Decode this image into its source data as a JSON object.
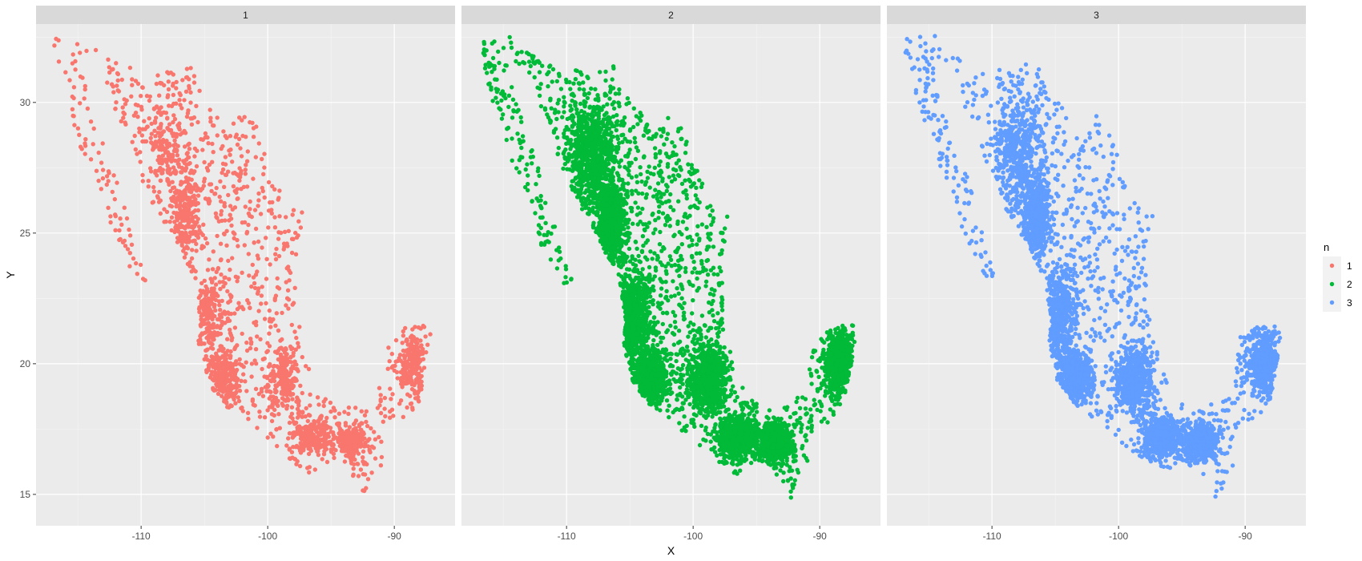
{
  "chart_data": {
    "type": "scatter",
    "facet_labels": [
      "1",
      "2",
      "3"
    ],
    "xlabel": "X",
    "ylabel": "Y",
    "x_ticks": [
      -110,
      -100,
      -90
    ],
    "y_ticks": [
      15,
      20,
      25,
      30
    ],
    "xlim": [
      -118.3,
      -85.2
    ],
    "ylim": [
      13.8,
      33.0
    ],
    "grid": true,
    "legend": {
      "title": "n",
      "position": "right",
      "entries": [
        {
          "label": "1",
          "color": "#F8766D"
        },
        {
          "label": "2",
          "color": "#00BA38"
        },
        {
          "label": "3",
          "color": "#619CFF"
        }
      ]
    },
    "series": [
      {
        "name": "1",
        "color": "#F8766D",
        "facet": "1",
        "approx_point_count": 2500,
        "x_range": [
          -117,
          -87
        ],
        "y_range": [
          14.9,
          32.6
        ]
      },
      {
        "name": "2",
        "color": "#00BA38",
        "facet": "2",
        "approx_point_count": 9000,
        "x_range": [
          -117,
          -87
        ],
        "y_range": [
          15.0,
          32.6
        ]
      },
      {
        "name": "3",
        "color": "#619CFF",
        "facet": "3",
        "approx_point_count": 6000,
        "x_range": [
          -117,
          -87
        ],
        "y_range": [
          14.6,
          32.6
        ]
      }
    ],
    "region_outline": [
      [
        -117.1,
        32.6
      ],
      [
        -116.4,
        32.5
      ],
      [
        -114.6,
        32.6
      ],
      [
        -113.5,
        32.2
      ],
      [
        -111.2,
        31.4
      ],
      [
        -109.3,
        31.3
      ],
      [
        -108.2,
        31.3
      ],
      [
        -106.4,
        31.7
      ],
      [
        -104.8,
        30.0
      ],
      [
        -103.2,
        29.1
      ],
      [
        -102.0,
        29.6
      ],
      [
        -100.9,
        29.3
      ],
      [
        -100.2,
        28.1
      ],
      [
        -99.4,
        27.0
      ],
      [
        -98.2,
        26.0
      ],
      [
        -97.2,
        25.9
      ],
      [
        -97.7,
        24.0
      ],
      [
        -97.7,
        22.5
      ],
      [
        -97.3,
        21.0
      ],
      [
        -96.2,
        19.4
      ],
      [
        -94.6,
        18.2
      ],
      [
        -92.0,
        18.6
      ],
      [
        -91.0,
        19.2
      ],
      [
        -90.4,
        21.1
      ],
      [
        -89.6,
        21.4
      ],
      [
        -87.0,
        21.5
      ],
      [
        -87.5,
        20.0
      ],
      [
        -88.0,
        18.6
      ],
      [
        -89.2,
        17.8
      ],
      [
        -91.0,
        17.3
      ],
      [
        -90.9,
        16.0
      ],
      [
        -92.2,
        14.8
      ],
      [
        -93.6,
        15.9
      ],
      [
        -94.7,
        16.2
      ],
      [
        -96.5,
        15.7
      ],
      [
        -98.4,
        16.4
      ],
      [
        -100.0,
        17.1
      ],
      [
        -101.8,
        17.8
      ],
      [
        -103.4,
        18.4
      ],
      [
        -104.9,
        19.4
      ],
      [
        -105.5,
        20.8
      ],
      [
        -105.3,
        21.6
      ],
      [
        -105.8,
        23.2
      ],
      [
        -107.5,
        24.8
      ],
      [
        -109.0,
        26.0
      ],
      [
        -110.6,
        27.8
      ],
      [
        -111.3,
        29.0
      ],
      [
        -112.2,
        29.9
      ],
      [
        -113.1,
        31.2
      ],
      [
        -114.7,
        31.7
      ],
      [
        -114.2,
        30.2
      ],
      [
        -112.8,
        28.6
      ],
      [
        -111.6,
        26.6
      ],
      [
        -110.3,
        24.2
      ],
      [
        -109.5,
        23.1
      ],
      [
        -110.0,
        22.9
      ],
      [
        -112.1,
        24.6
      ],
      [
        -112.9,
        26.4
      ],
      [
        -114.6,
        28.0
      ],
      [
        -115.7,
        29.7
      ],
      [
        -116.7,
        31.4
      ],
      [
        -117.1,
        32.6
      ]
    ],
    "dense_clusters": [
      {
        "x": -108.0,
        "y": 28.0,
        "sx": 1.6,
        "sy": 1.8
      },
      {
        "x": -104.8,
        "y": 21.8,
        "sx": 1.2,
        "sy": 1.4
      },
      {
        "x": -98.8,
        "y": 19.4,
        "sx": 1.2,
        "sy": 1.0
      },
      {
        "x": -96.5,
        "y": 17.2,
        "sx": 1.3,
        "sy": 0.6
      },
      {
        "x": -93.5,
        "y": 17.0,
        "sx": 1.0,
        "sy": 0.6
      },
      {
        "x": -88.5,
        "y": 20.0,
        "sx": 0.9,
        "sy": 1.0
      },
      {
        "x": -103.3,
        "y": 19.5,
        "sx": 1.0,
        "sy": 0.8
      },
      {
        "x": -106.5,
        "y": 25.5,
        "sx": 0.9,
        "sy": 1.2
      }
    ]
  }
}
